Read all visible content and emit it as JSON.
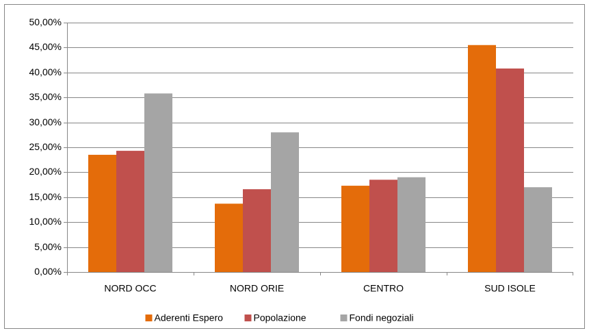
{
  "chart_data": {
    "type": "bar",
    "categories": [
      "NORD OCC",
      "NORD ORIE",
      "CENTRO",
      "SUD ISOLE"
    ],
    "series": [
      {
        "name": "Aderenti Espero",
        "color": "#e46c0a",
        "values": [
          23.5,
          13.7,
          17.3,
          45.5
        ]
      },
      {
        "name": "Popolazione",
        "color": "#c0504d",
        "values": [
          24.3,
          16.6,
          18.5,
          40.8
        ]
      },
      {
        "name": "Fondi negoziali",
        "color": "#a5a5a5",
        "values": [
          35.8,
          28.0,
          19.0,
          17.0
        ]
      }
    ],
    "ylim": [
      0,
      50
    ],
    "yticks": [
      {
        "value": 0,
        "label": "0,00%"
      },
      {
        "value": 5,
        "label": "5,00%"
      },
      {
        "value": 10,
        "label": "10,00%"
      },
      {
        "value": 15,
        "label": "15,00%"
      },
      {
        "value": 20,
        "label": "20,00%"
      },
      {
        "value": 25,
        "label": "25,00%"
      },
      {
        "value": 30,
        "label": "30,00%"
      },
      {
        "value": 35,
        "label": "35,00%"
      },
      {
        "value": 40,
        "label": "40,00%"
      },
      {
        "value": 45,
        "label": "45,00%"
      },
      {
        "value": 50,
        "label": "50,00%"
      }
    ],
    "grid": true,
    "legend": "bottom"
  }
}
